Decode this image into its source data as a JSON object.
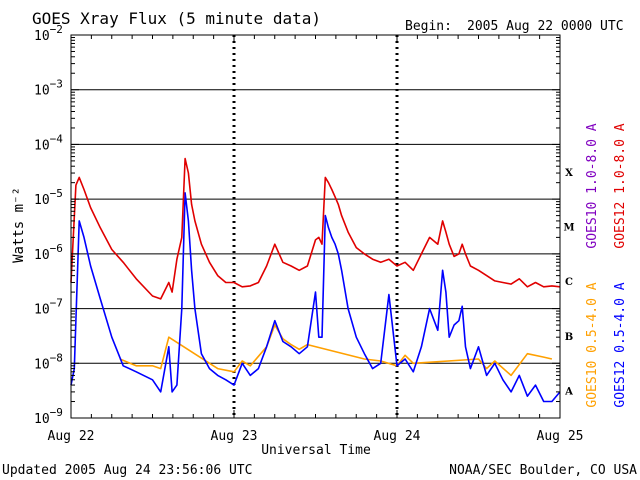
{
  "title": "GOES Xray Flux (5 minute data)",
  "begin_label": "Begin:",
  "begin_value": "2005 Aug 22 0000 UTC",
  "updated": "Updated 2005 Aug 24 23:56:06 UTC",
  "credit": "NOAA/SEC Boulder, CO USA",
  "colors": {
    "goes12_long": "#e00000",
    "goes12_short": "#0000ff",
    "goes10_long": "#8000c0",
    "goes10_short": "#ffa000",
    "axis": "#000000",
    "grid": "#000000"
  },
  "chart_data": {
    "type": "line",
    "title": "GOES Xray Flux (5 minute data)",
    "xlabel": "Universal Time",
    "ylabel": "Watts m⁻²",
    "x_ticks": [
      "Aug 22",
      "Aug 23",
      "Aug 24",
      "Aug 25"
    ],
    "y_scale": "log",
    "ylim": [
      1e-09,
      0.01
    ],
    "y_ticks": [
      {
        "base": "10",
        "exp": "−2"
      },
      {
        "base": "10",
        "exp": "−3"
      },
      {
        "base": "10",
        "exp": "−4"
      },
      {
        "base": "10",
        "exp": "−5"
      },
      {
        "base": "10",
        "exp": "−6"
      },
      {
        "base": "10",
        "exp": "−7"
      },
      {
        "base": "10",
        "exp": "−8"
      },
      {
        "base": "10",
        "exp": "−9"
      }
    ],
    "flare_classes": [
      "X",
      "M",
      "C",
      "B",
      "A"
    ],
    "grid": true,
    "legend": [
      "GOES10 1.0-8.0 A",
      "GOES12 1.0-8.0 A",
      "GOES10 0.5-4.0 A",
      "GOES12 0.5-4.0 A"
    ],
    "series": [
      {
        "name": "GOES12 1.0-8.0 A",
        "x": [
          0.0,
          0.03,
          0.05,
          0.08,
          0.12,
          0.18,
          0.25,
          0.32,
          0.4,
          0.5,
          0.55,
          0.6,
          0.62,
          0.65,
          0.68,
          0.7,
          0.72,
          0.74,
          0.76,
          0.8,
          0.85,
          0.9,
          0.95,
          1.0,
          1.05,
          1.1,
          1.15,
          1.2,
          1.25,
          1.3,
          1.35,
          1.4,
          1.45,
          1.5,
          1.52,
          1.54,
          1.56,
          1.58,
          1.6,
          1.62,
          1.64,
          1.66,
          1.7,
          1.75,
          1.8,
          1.85,
          1.9,
          1.95,
          2.0,
          2.05,
          2.1,
          2.15,
          2.2,
          2.25,
          2.28,
          2.3,
          2.32,
          2.35,
          2.38,
          2.4,
          2.42,
          2.45,
          2.5,
          2.55,
          2.6,
          2.65,
          2.7,
          2.75,
          2.8,
          2.85,
          2.9,
          2.95,
          3.0
        ],
        "y": [
          3e-07,
          1.8e-05,
          2.5e-05,
          1.5e-05,
          7e-06,
          3e-06,
          1.2e-06,
          7e-07,
          3.5e-07,
          1.7e-07,
          1.5e-07,
          3e-07,
          2e-07,
          8e-07,
          2e-06,
          5.5e-05,
          3e-05,
          8e-06,
          4e-06,
          1.5e-06,
          7e-07,
          4e-07,
          3e-07,
          3e-07,
          2.5e-07,
          2.6e-07,
          3e-07,
          6e-07,
          1.5e-06,
          7e-07,
          6e-07,
          5e-07,
          6e-07,
          1.8e-06,
          2e-06,
          1.5e-06,
          2.5e-05,
          2e-05,
          1.5e-05,
          1.1e-05,
          8e-06,
          5e-06,
          2.5e-06,
          1.3e-06,
          1e-06,
          8e-07,
          7e-07,
          8e-07,
          6e-07,
          7e-07,
          5e-07,
          1e-06,
          2e-06,
          1.5e-06,
          4e-06,
          2.5e-06,
          1.5e-06,
          9e-07,
          1e-06,
          1.5e-06,
          1e-06,
          6e-07,
          5e-07,
          4e-07,
          3.2e-07,
          3e-07,
          2.8e-07,
          3.5e-07,
          2.5e-07,
          3e-07,
          2.5e-07,
          2.6e-07,
          2.5e-07
        ]
      },
      {
        "name": "GOES12 0.5-4.0 A",
        "x": [
          0.0,
          0.02,
          0.05,
          0.08,
          0.12,
          0.18,
          0.25,
          0.32,
          0.4,
          0.5,
          0.55,
          0.6,
          0.62,
          0.65,
          0.68,
          0.7,
          0.72,
          0.74,
          0.76,
          0.8,
          0.85,
          0.9,
          0.95,
          1.0,
          1.05,
          1.1,
          1.15,
          1.2,
          1.25,
          1.3,
          1.35,
          1.4,
          1.45,
          1.5,
          1.52,
          1.54,
          1.56,
          1.58,
          1.6,
          1.62,
          1.64,
          1.66,
          1.7,
          1.75,
          1.8,
          1.85,
          1.9,
          1.95,
          2.0,
          2.05,
          2.1,
          2.15,
          2.2,
          2.25,
          2.28,
          2.3,
          2.32,
          2.35,
          2.38,
          2.4,
          2.42,
          2.45,
          2.5,
          2.55,
          2.6,
          2.65,
          2.7,
          2.75,
          2.8,
          2.85,
          2.9,
          2.95,
          3.0
        ],
        "y": [
          4e-09,
          8e-09,
          4e-06,
          2e-06,
          6e-07,
          1.5e-07,
          3e-08,
          9e-09,
          7e-09,
          5e-09,
          3e-09,
          2e-08,
          3e-09,
          4e-09,
          1e-07,
          1.3e-05,
          4e-06,
          5e-07,
          1e-07,
          1.5e-08,
          8e-09,
          6e-09,
          5e-09,
          4e-09,
          1e-08,
          6e-09,
          8e-09,
          2e-08,
          6e-08,
          2.5e-08,
          2e-08,
          1.5e-08,
          2e-08,
          2e-07,
          3e-08,
          3e-08,
          5e-06,
          3e-06,
          2e-06,
          1.5e-06,
          1e-06,
          5e-07,
          1e-07,
          3e-08,
          1.5e-08,
          8e-09,
          1e-08,
          1.8e-07,
          9e-09,
          1.2e-08,
          7e-09,
          2e-08,
          1e-07,
          4e-08,
          5e-07,
          2e-07,
          3e-08,
          5e-08,
          6e-08,
          1.1e-07,
          2e-08,
          8e-09,
          2e-08,
          6e-09,
          1e-08,
          5e-09,
          3e-09,
          6e-09,
          2.5e-09,
          4e-09,
          2e-09,
          2e-09,
          3e-09
        ]
      },
      {
        "name": "GOES10 0.5-4.0 A",
        "x": [
          0.3,
          0.4,
          0.5,
          0.55,
          0.6,
          0.9,
          1.0,
          1.05,
          1.1,
          1.2,
          1.25,
          1.3,
          1.35,
          1.4,
          1.45,
          1.8,
          1.9,
          2.0,
          2.05,
          2.1,
          2.5,
          2.55,
          2.6,
          2.7,
          2.8,
          2.9,
          2.95
        ],
        "y": [
          1.2e-08,
          9e-09,
          9e-09,
          8e-09,
          3e-08,
          8e-09,
          7e-09,
          1.1e-08,
          9e-09,
          2e-08,
          5e-08,
          2.8e-08,
          2.2e-08,
          1.8e-08,
          2.2e-08,
          1.2e-08,
          1.1e-08,
          9e-09,
          1.4e-08,
          1e-08,
          1.2e-08,
          8e-09,
          1.1e-08,
          6e-09,
          1.5e-08,
          1.3e-08,
          1.2e-08
        ]
      }
    ]
  }
}
